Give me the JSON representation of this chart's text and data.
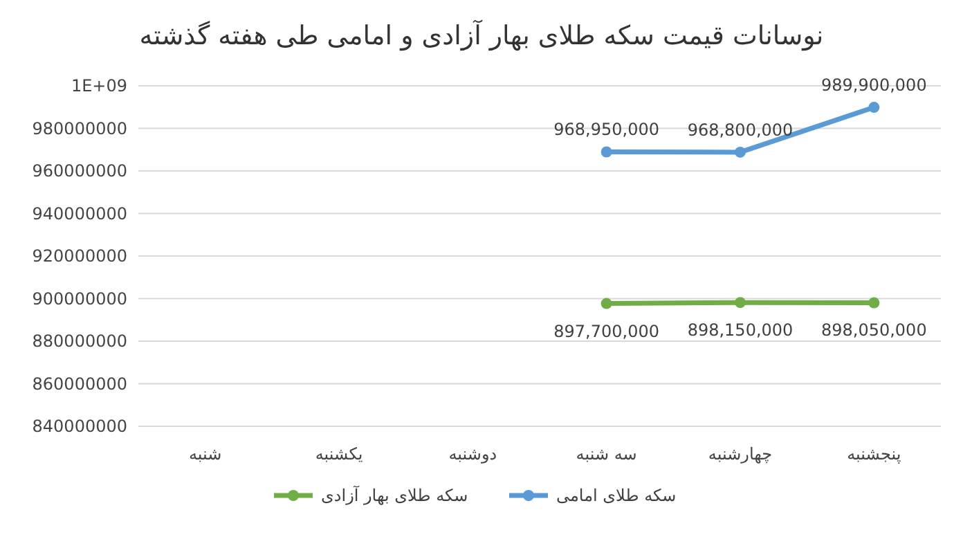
{
  "chart_data": {
    "type": "line",
    "title": "نوسانات قیمت سکه طلای بهار آزادی و امامی طی هفته گذشته",
    "categories": [
      "شنبه",
      "یکشنبه",
      "دوشنبه",
      "سه شنبه",
      "چهارشنبه",
      "پنجشنبه"
    ],
    "series": [
      {
        "name": "سکه طلای بهار آزادی",
        "color": "#70ad47",
        "values": [
          null,
          null,
          null,
          897700000,
          898150000,
          898050000
        ],
        "value_labels": [
          null,
          null,
          null,
          "897,700,000",
          "898,150,000",
          "898,050,000"
        ]
      },
      {
        "name": "سکه طلای امامی",
        "color": "#5b9bd5",
        "values": [
          null,
          null,
          null,
          968950000,
          968800000,
          989900000
        ],
        "value_labels": [
          null,
          null,
          null,
          "968,950,000",
          "968,800,000",
          "989,900,000"
        ]
      }
    ],
    "ylim": [
      840000000,
      1000000000
    ],
    "yticks": [
      840000000,
      860000000,
      880000000,
      900000000,
      920000000,
      940000000,
      960000000,
      980000000,
      {
        "value": 1000000000,
        "label": "1E+09"
      }
    ],
    "grid": "y",
    "legend": "bottom",
    "marker": "circle",
    "line_style": "solid"
  }
}
